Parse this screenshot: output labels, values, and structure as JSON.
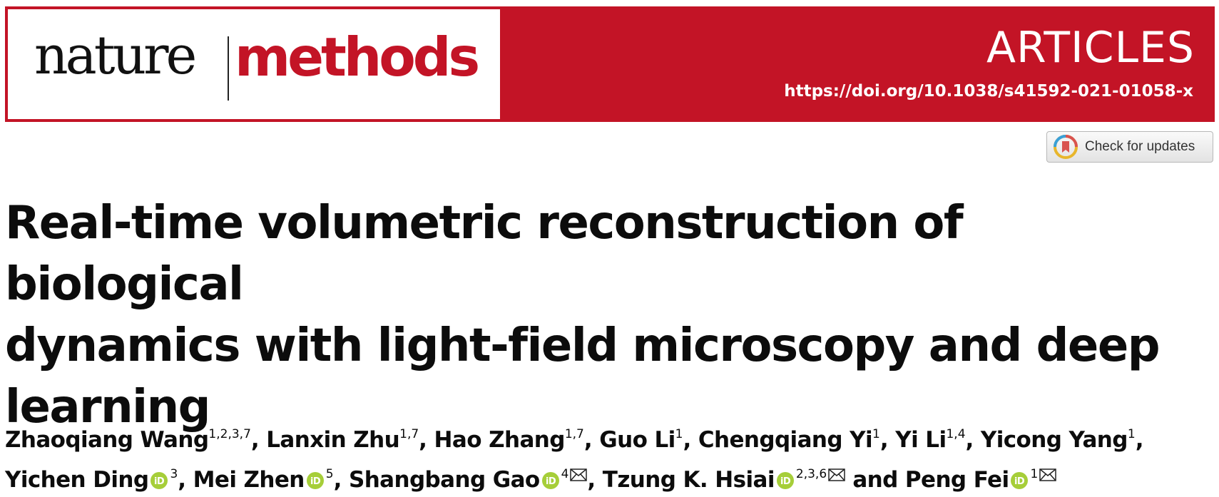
{
  "header": {
    "logo_left": "nature",
    "logo_right": "methods",
    "section_label": "ARTICLES",
    "doi_url": "https://doi.org/10.1038/s41592-021-01058-x",
    "brand_color": "#c31426"
  },
  "updates_button": {
    "label": "Check for updates",
    "icon": "check-for-updates-icon"
  },
  "article": {
    "title_lines": [
      "Real-time volumetric reconstruction of biological",
      "dynamics with light-field microscopy and deep",
      "learning"
    ]
  },
  "authors": [
    {
      "name": "Zhaoqiang Wang",
      "aff": "1,2,3,7",
      "orcid": false,
      "email": false,
      "sep": ", "
    },
    {
      "name": "Lanxin Zhu",
      "aff": "1,7",
      "orcid": false,
      "email": false,
      "sep": ", "
    },
    {
      "name": "Hao Zhang",
      "aff": "1,7",
      "orcid": false,
      "email": false,
      "sep": ", "
    },
    {
      "name": "Guo Li",
      "aff": "1",
      "orcid": false,
      "email": false,
      "sep": ", "
    },
    {
      "name": "Chengqiang Yi",
      "aff": "1",
      "orcid": false,
      "email": false,
      "sep": ", "
    },
    {
      "name": "Yi Li",
      "aff": "1,4",
      "orcid": false,
      "email": false,
      "sep": ", "
    },
    {
      "name": "Yicong Yang",
      "aff": "1",
      "orcid": false,
      "email": false,
      "sep": ", "
    },
    {
      "name": "Yichen Ding",
      "aff": "3",
      "orcid": true,
      "email": false,
      "sep": ", "
    },
    {
      "name": "Mei Zhen",
      "aff": "5",
      "orcid": true,
      "email": false,
      "sep": ", "
    },
    {
      "name": "Shangbang Gao",
      "aff": "4",
      "orcid": true,
      "email": true,
      "sep": ", "
    },
    {
      "name": "Tzung K. Hsiai",
      "aff": "2,3,6",
      "orcid": true,
      "email": true,
      "sep": " and "
    },
    {
      "name": "Peng Fei",
      "aff": "1",
      "orcid": true,
      "email": true,
      "sep": ""
    }
  ]
}
